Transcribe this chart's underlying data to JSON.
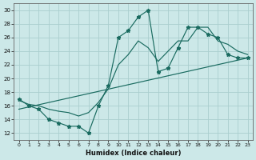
{
  "xlabel": "Humidex (Indice chaleur)",
  "xlim": [
    -0.5,
    23.5
  ],
  "ylim": [
    11,
    31
  ],
  "yticks": [
    12,
    14,
    16,
    18,
    20,
    22,
    24,
    26,
    28,
    30
  ],
  "xticks": [
    0,
    1,
    2,
    3,
    4,
    5,
    6,
    7,
    8,
    9,
    10,
    11,
    12,
    13,
    14,
    15,
    16,
    17,
    18,
    19,
    20,
    21,
    22,
    23
  ],
  "background_color": "#cce8e8",
  "grid_color": "#aacece",
  "line_color": "#1a6b60",
  "line1_x": [
    0,
    1,
    2,
    3,
    4,
    5,
    6,
    7,
    8,
    9,
    10,
    11,
    12,
    13,
    14,
    15,
    16,
    17,
    18,
    19,
    20,
    21,
    22,
    23
  ],
  "line1_y": [
    17.0,
    16.0,
    15.5,
    14.0,
    13.5,
    13.0,
    13.0,
    12.0,
    16.0,
    19.0,
    26.0,
    27.0,
    29.0,
    30.0,
    21.0,
    21.5,
    24.5,
    27.5,
    27.5,
    26.5,
    26.0,
    23.5,
    23.0,
    23.0
  ],
  "line2_x": [
    0,
    1,
    2,
    3,
    4,
    5,
    6,
    7,
    8,
    9,
    10,
    11,
    12,
    13,
    14,
    15,
    16,
    17,
    18,
    19,
    20,
    21,
    22,
    23
  ],
  "line2_y": [
    16.8,
    16.2,
    16.0,
    15.5,
    15.2,
    15.0,
    14.5,
    15.0,
    16.5,
    18.5,
    22.0,
    23.5,
    25.5,
    24.5,
    22.5,
    24.0,
    25.5,
    25.5,
    27.5,
    27.5,
    25.5,
    25.0,
    24.0,
    23.5
  ],
  "line3_x": [
    0,
    23
  ],
  "line3_y": [
    15.5,
    23.0
  ]
}
